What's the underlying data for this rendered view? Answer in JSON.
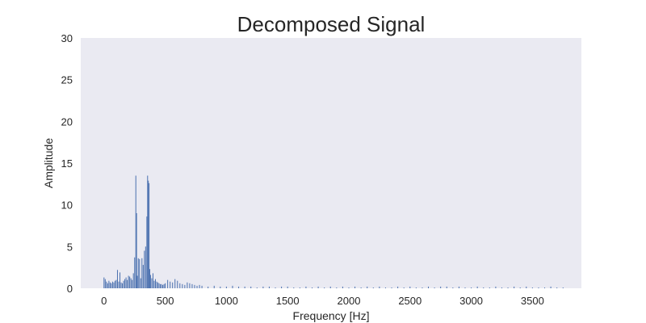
{
  "chart_data": {
    "type": "bar",
    "title": "Decomposed Signal",
    "xlabel": "Frequency [Hz]",
    "ylabel": "Amplitude",
    "xlim": [
      -190,
      3900
    ],
    "ylim": [
      0,
      30
    ],
    "xticks": [
      0,
      500,
      1000,
      1500,
      2000,
      2500,
      3000,
      3500
    ],
    "yticks": [
      0,
      5,
      10,
      15,
      20,
      25,
      30
    ],
    "grid": false,
    "bar_color": "#4c72b0",
    "plot_background": "#eaeaf2",
    "bin_width_hz": 7.8,
    "x": [
      0,
      10,
      20,
      30,
      40,
      50,
      60,
      70,
      80,
      90,
      100,
      110,
      120,
      130,
      140,
      150,
      160,
      170,
      180,
      190,
      200,
      210,
      220,
      230,
      240,
      250,
      260,
      266,
      272,
      280,
      290,
      300,
      310,
      320,
      330,
      340,
      350,
      356,
      362,
      368,
      374,
      380,
      390,
      400,
      410,
      420,
      430,
      440,
      450,
      460,
      470,
      480,
      490,
      500,
      520,
      540,
      560,
      580,
      600,
      620,
      640,
      660,
      680,
      700,
      720,
      740,
      760,
      780,
      800,
      850,
      900,
      950,
      1000,
      1050,
      1100,
      1150,
      1200,
      1250,
      1300,
      1350,
      1400,
      1450,
      1500,
      1550,
      1600,
      1650,
      1700,
      1750,
      1800,
      1850,
      1900,
      1950,
      2000,
      2050,
      2100,
      2150,
      2200,
      2250,
      2300,
      2350,
      2400,
      2450,
      2500,
      2550,
      2600,
      2650,
      2700,
      2750,
      2800,
      2850,
      2900,
      2950,
      3000,
      3050,
      3100,
      3150,
      3200,
      3250,
      3300,
      3350,
      3400,
      3450,
      3500,
      3550,
      3600,
      3650,
      3700,
      3750
    ],
    "values": [
      1.3,
      1.1,
      0.8,
      0.6,
      0.9,
      0.7,
      0.6,
      0.8,
      0.7,
      0.9,
      1.0,
      2.2,
      0.8,
      1.9,
      0.7,
      0.6,
      0.9,
      1.1,
      1.3,
      1.0,
      1.5,
      1.4,
      1.2,
      1.0,
      1.8,
      3.7,
      13.5,
      9.0,
      1.5,
      3.6,
      3.5,
      1.2,
      3.6,
      2.8,
      4.5,
      5.0,
      8.6,
      13.5,
      12.9,
      12.6,
      2.3,
      1.6,
      1.2,
      1.8,
      0.9,
      1.1,
      0.8,
      0.7,
      0.6,
      0.5,
      0.5,
      0.4,
      0.5,
      0.6,
      1.0,
      0.8,
      0.7,
      1.1,
      0.9,
      0.6,
      0.5,
      0.4,
      0.7,
      0.6,
      0.5,
      0.4,
      0.3,
      0.4,
      0.3,
      0.2,
      0.3,
      0.2,
      0.2,
      0.3,
      0.2,
      0.2,
      0.2,
      0.1,
      0.2,
      0.2,
      0.1,
      0.2,
      0.2,
      0.1,
      0.1,
      0.2,
      0.1,
      0.2,
      0.1,
      0.2,
      0.1,
      0.2,
      0.1,
      0.2,
      0.1,
      0.2,
      0.1,
      0.2,
      0.1,
      0.1,
      0.2,
      0.1,
      0.2,
      0.1,
      0.1,
      0.2,
      0.1,
      0.2,
      0.2,
      0.1,
      0.2,
      0.1,
      0.1,
      0.2,
      0.1,
      0.1,
      0.2,
      0.1,
      0.1,
      0.2,
      0.1,
      0.2,
      0.1,
      0.1,
      0.1,
      0.2,
      0.1,
      0.1
    ]
  }
}
